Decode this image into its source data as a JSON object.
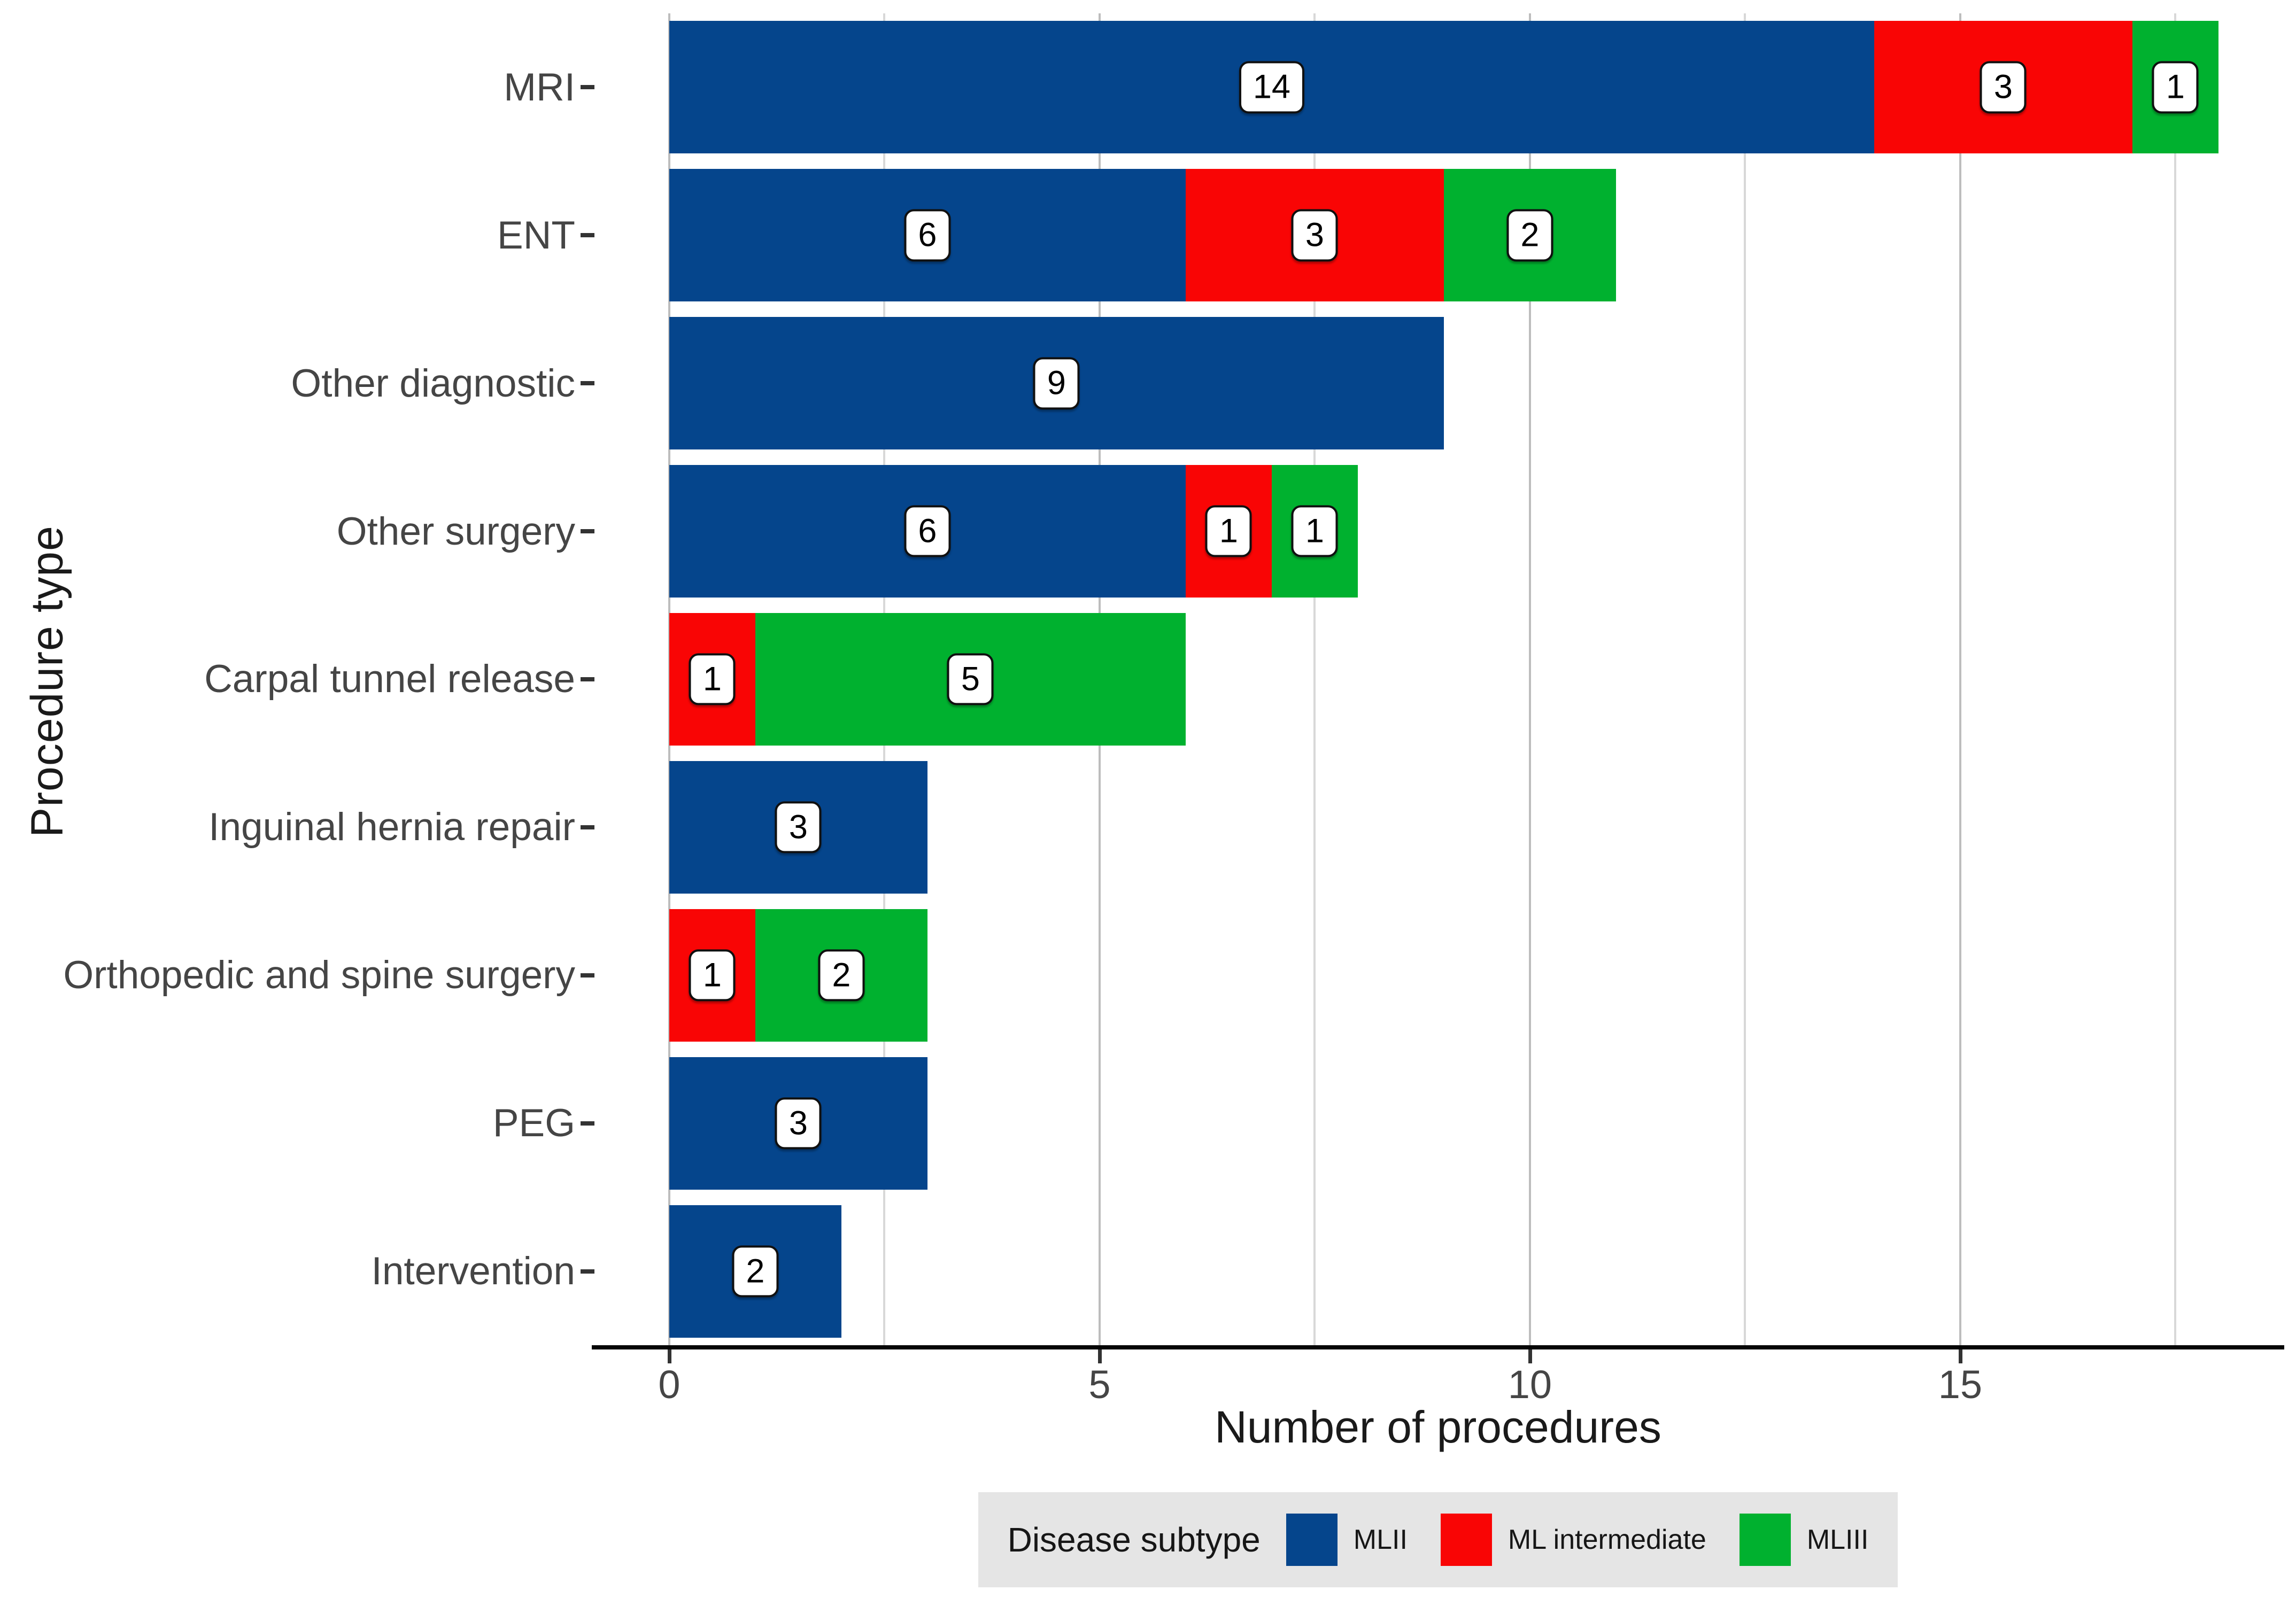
{
  "axes": {
    "x_title": "Number of procedures",
    "y_title": "Procedure type",
    "x_ticks": [
      {
        "label": "0",
        "value": 0
      },
      {
        "label": "5",
        "value": 5
      },
      {
        "label": "10",
        "value": 10
      },
      {
        "label": "15",
        "value": 15
      }
    ]
  },
  "legend": {
    "title": "Disease subtype",
    "items": [
      {
        "label": "MLII",
        "color": "#05458c"
      },
      {
        "label": "ML intermediate",
        "color": "#f90505"
      },
      {
        "label": "MLIII",
        "color": "#00b12f"
      }
    ]
  },
  "chart_data": {
    "type": "bar",
    "orientation": "horizontal",
    "stacked": true,
    "title": "",
    "xlabel": "Number of procedures",
    "ylabel": "Procedure type",
    "xlim": [
      0,
      18
    ],
    "x_major_gridlines": [
      0,
      5,
      10,
      15
    ],
    "x_minor_gridlines": [
      2.5,
      7.5,
      12.5,
      17.5
    ],
    "grid": "vertical-only",
    "legend_position": "bottom",
    "bar_value_labels": true,
    "categories": [
      "MRI",
      "ENT",
      "Other diagnostic",
      "Other surgery",
      "Carpal tunnel release",
      "Inguinal hernia repair",
      "Orthopedic and spine surgery",
      "PEG",
      "Intervention"
    ],
    "series": [
      {
        "name": "MLII",
        "color": "#05458c",
        "values": [
          14,
          6,
          9,
          6,
          0,
          3,
          0,
          3,
          2
        ]
      },
      {
        "name": "ML intermediate",
        "color": "#f90505",
        "values": [
          3,
          3,
          0,
          1,
          1,
          0,
          1,
          0,
          0
        ]
      },
      {
        "name": "MLIII",
        "color": "#00b12f",
        "values": [
          1,
          2,
          0,
          1,
          5,
          0,
          2,
          0,
          0
        ]
      }
    ],
    "totals": [
      18,
      11,
      9,
      8,
      6,
      3,
      3,
      3,
      2
    ]
  }
}
